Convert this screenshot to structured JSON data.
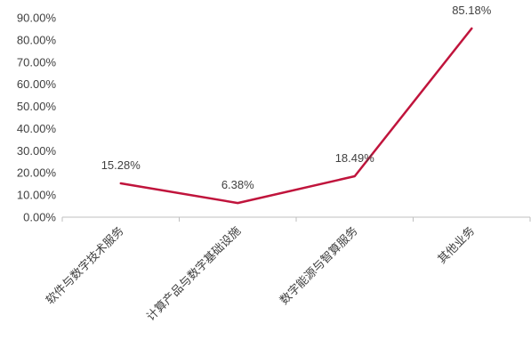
{
  "chart_data": {
    "type": "line",
    "categories": [
      "软件与数字技术服务",
      "计算产品与数字基础设施",
      "数字能源与智算服务",
      "其他业务"
    ],
    "series": [
      {
        "values": [
          15.28,
          6.38,
          18.49,
          85.18
        ],
        "color": "#C0143C"
      }
    ],
    "data_labels": [
      "15.28%",
      "6.38%",
      "18.49%",
      "85.18%"
    ],
    "y_ticks": [
      "0.00%",
      "10.00%",
      "20.00%",
      "30.00%",
      "40.00%",
      "50.00%",
      "60.00%",
      "70.00%",
      "80.00%",
      "90.00%"
    ],
    "ylim": [
      0,
      90
    ],
    "grid": false,
    "axis_color": "#BFBFBF",
    "text_color": "#404040"
  }
}
